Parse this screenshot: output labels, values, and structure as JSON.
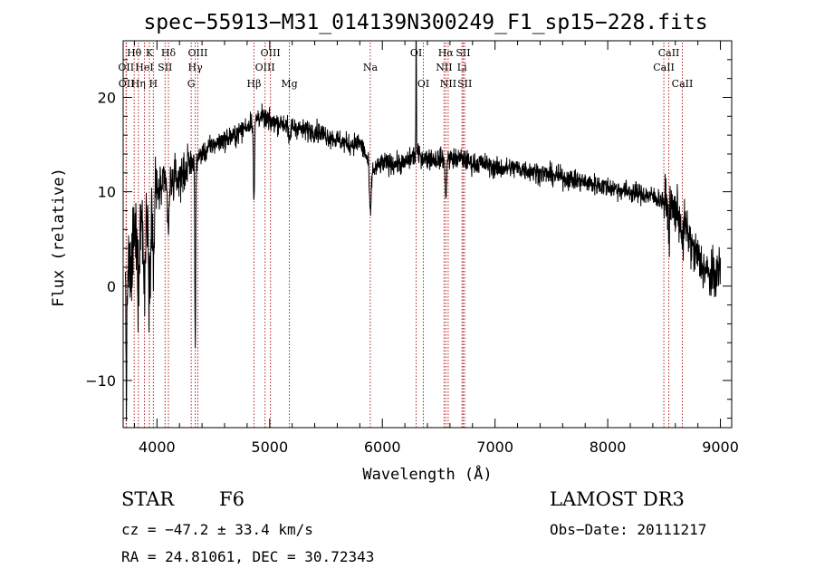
{
  "chart_data": {
    "type": "line",
    "title": "spec−55913−M31_014139N300249_F1_sp15−228.fits",
    "xlabel": "Wavelength (Å)",
    "ylabel": "Flux (relative)",
    "xlim": [
      3700,
      9100
    ],
    "ylim": [
      -15,
      26
    ],
    "x_ticks": [
      4000,
      5000,
      6000,
      7000,
      8000,
      9000
    ],
    "x_tick_labels": [
      "4000",
      "5000",
      "6000",
      "7000",
      "8000",
      "9000"
    ],
    "y_ticks": [
      -10,
      0,
      10,
      20
    ],
    "y_tick_labels": [
      "−10",
      "0",
      "10",
      "20"
    ],
    "line_color": "#000000",
    "marker_color": "#b22222",
    "grid": false,
    "spectrum": {
      "continuum": [
        [
          3700,
          1
        ],
        [
          3760,
          3
        ],
        [
          3800,
          5
        ],
        [
          3850,
          7
        ],
        [
          3900,
          8
        ],
        [
          3950,
          9
        ],
        [
          4000,
          10
        ],
        [
          4100,
          11
        ],
        [
          4200,
          11.5
        ],
        [
          4300,
          13
        ],
        [
          4400,
          14
        ],
        [
          4500,
          15
        ],
        [
          4600,
          15.5
        ],
        [
          4700,
          16
        ],
        [
          4800,
          17
        ],
        [
          4900,
          18
        ],
        [
          5000,
          17.5
        ],
        [
          5100,
          17.3
        ],
        [
          5200,
          17
        ],
        [
          5300,
          16.5
        ],
        [
          5400,
          16.5
        ],
        [
          5500,
          16
        ],
        [
          5600,
          15.5
        ],
        [
          5700,
          15
        ],
        [
          5800,
          15.2
        ],
        [
          5850,
          14
        ],
        [
          5900,
          12
        ],
        [
          5950,
          12.5
        ],
        [
          6000,
          13
        ],
        [
          6100,
          13
        ],
        [
          6200,
          13
        ],
        [
          6300,
          14
        ],
        [
          6400,
          13.5
        ],
        [
          6500,
          13.5
        ],
        [
          6600,
          13.5
        ],
        [
          6700,
          13.5
        ],
        [
          6800,
          13
        ],
        [
          6900,
          13
        ],
        [
          7000,
          12.5
        ],
        [
          7200,
          12.5
        ],
        [
          7400,
          12
        ],
        [
          7600,
          11.5
        ],
        [
          7800,
          11
        ],
        [
          8000,
          10.5
        ],
        [
          8200,
          10
        ],
        [
          8400,
          9.5
        ],
        [
          8500,
          9
        ],
        [
          8600,
          8
        ],
        [
          8700,
          6
        ],
        [
          8750,
          4
        ],
        [
          8800,
          3
        ],
        [
          8850,
          2
        ],
        [
          8900,
          1
        ],
        [
          8950,
          1
        ],
        [
          9000,
          2
        ]
      ],
      "absorption": [
        {
          "wavelength": 3730,
          "depth": 12,
          "width": 5
        },
        {
          "wavelength": 3770,
          "depth": 4,
          "width": 6
        },
        {
          "wavelength": 3835,
          "depth": 6,
          "width": 8
        },
        {
          "wavelength": 3889,
          "depth": 8,
          "width": 8
        },
        {
          "wavelength": 3933,
          "depth": 9,
          "width": 7
        },
        {
          "wavelength": 3968,
          "depth": 7,
          "width": 7
        },
        {
          "wavelength": 4101,
          "depth": 5,
          "width": 8
        },
        {
          "wavelength": 4340,
          "depth": 20,
          "width": 4
        },
        {
          "wavelength": 4861,
          "depth": 9,
          "width": 5
        },
        {
          "wavelength": 5175,
          "depth": 2,
          "width": 8
        },
        {
          "wavelength": 5893,
          "depth": 5,
          "width": 7
        },
        {
          "wavelength": 6563,
          "depth": 4,
          "width": 6
        },
        {
          "wavelength": 8542,
          "depth": 3,
          "width": 6
        },
        {
          "wavelength": 8662,
          "depth": 3,
          "width": 6
        }
      ],
      "emission": [
        {
          "wavelength": 6300,
          "height": 23,
          "width": 2
        }
      ],
      "noise": [
        {
          "from": 3700,
          "to": 4000,
          "sigma": 3.2
        },
        {
          "from": 4000,
          "to": 4300,
          "sigma": 1.6
        },
        {
          "from": 4300,
          "to": 8500,
          "sigma": 0.8
        },
        {
          "from": 8500,
          "to": 9000,
          "sigma": 1.8
        }
      ]
    },
    "line_markers": [
      {
        "wavelength": 3726,
        "label": "OII",
        "row": 2
      },
      {
        "wavelength": 3729,
        "label": "OII",
        "row": 3
      },
      {
        "wavelength": 3798,
        "label": "Hθ",
        "row": 1
      },
      {
        "wavelength": 3835,
        "label": "Hη",
        "row": 3
      },
      {
        "wavelength": 3889,
        "label": "HeI",
        "row": 2
      },
      {
        "wavelength": 3933,
        "label": "K",
        "row": 1
      },
      {
        "wavelength": 3968,
        "label": "H",
        "row": 3
      },
      {
        "wavelength": 4072,
        "label": "SII",
        "row": 2
      },
      {
        "wavelength": 4102,
        "label": "Hδ",
        "row": 1
      },
      {
        "wavelength": 4304,
        "label": "G",
        "row": 3
      },
      {
        "wavelength": 4340,
        "label": "Hγ",
        "row": 2
      },
      {
        "wavelength": 4363,
        "label": "OIII",
        "row": 1
      },
      {
        "wavelength": 4861,
        "label": "Hβ",
        "row": 3
      },
      {
        "wavelength": 4959,
        "label": "OIII",
        "row": 2
      },
      {
        "wavelength": 5007,
        "label": "OIII",
        "row": 1
      },
      {
        "wavelength": 5175,
        "label": "Mg",
        "row": 3
      },
      {
        "wavelength": 5893,
        "label": "Na",
        "row": 2
      },
      {
        "wavelength": 6300,
        "label": "OI",
        "row": 1
      },
      {
        "wavelength": 6364,
        "label": "OI",
        "row": 3
      },
      {
        "wavelength": 6548,
        "label": "NII",
        "row": 2
      },
      {
        "wavelength": 6563,
        "label": "Hα",
        "row": 1
      },
      {
        "wavelength": 6584,
        "label": "NII",
        "row": 3
      },
      {
        "wavelength": 6707,
        "label": "Li",
        "row": 2
      },
      {
        "wavelength": 6717,
        "label": "SII",
        "row": 1
      },
      {
        "wavelength": 6731,
        "label": "SII",
        "row": 3
      },
      {
        "wavelength": 8498,
        "label": "CaII",
        "row": 2
      },
      {
        "wavelength": 8542,
        "label": "CaII",
        "row": 1
      },
      {
        "wavelength": 8662,
        "label": "CaII",
        "row": 3
      }
    ]
  },
  "info": {
    "class": "STAR",
    "subclass": "F6",
    "survey": "LAMOST DR3",
    "cz": "cz = −47.2 ± 33.4 km/s",
    "obs_date": "Obs−Date: 20111217",
    "radec": "RA =  24.81061, DEC =  30.72343"
  }
}
